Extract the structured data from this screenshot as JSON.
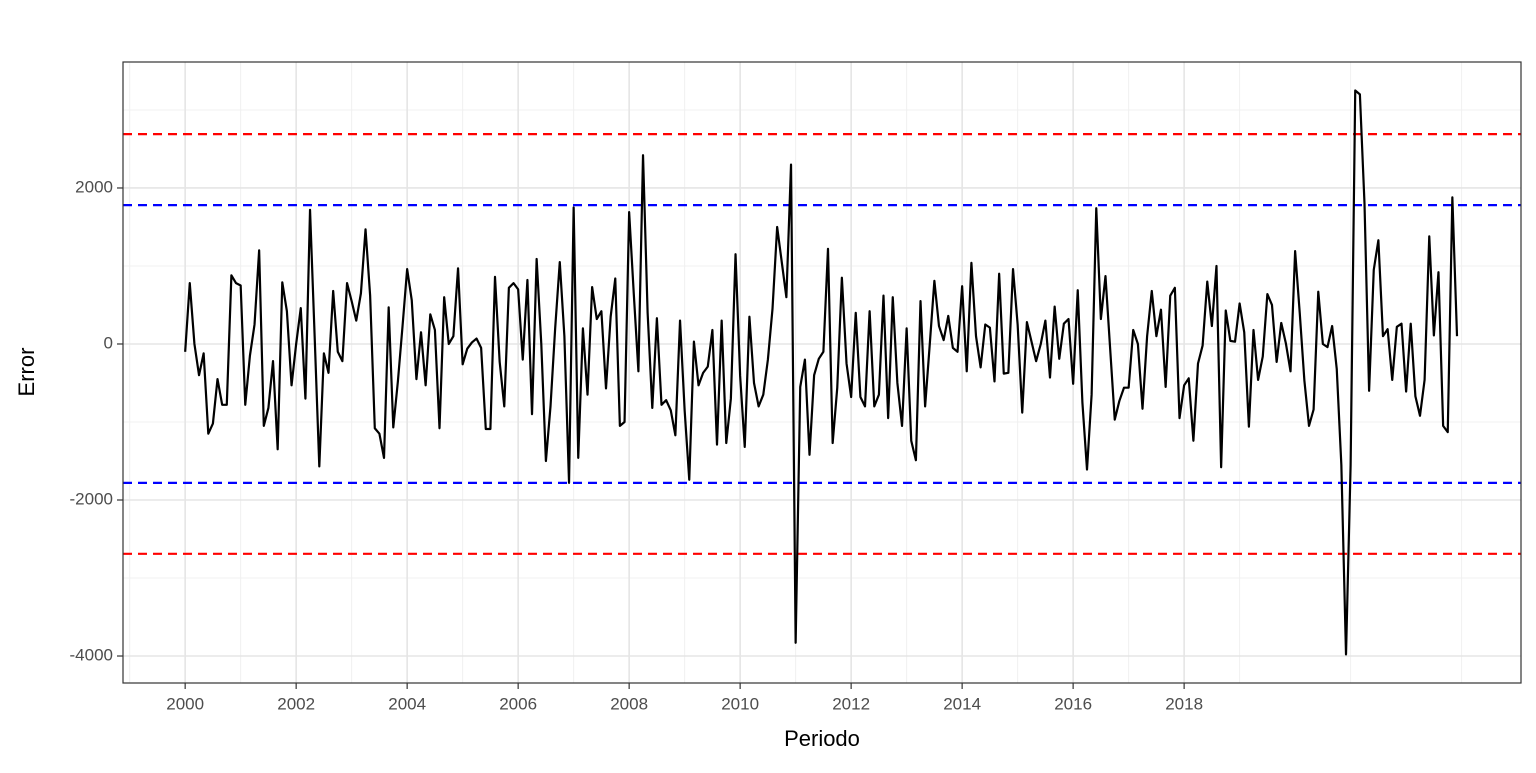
{
  "chart_data": {
    "type": "line",
    "xlabel": "Periodo",
    "ylabel": "Error",
    "x": [
      2000,
      2000.083,
      2000.167,
      2000.25,
      2000.333,
      2000.417,
      2000.5,
      2000.583,
      2000.667,
      2000.75,
      2000.833,
      2000.917,
      2001,
      2001.083,
      2001.167,
      2001.25,
      2001.333,
      2001.417,
      2001.5,
      2001.583,
      2001.667,
      2001.75,
      2001.833,
      2001.917,
      2002,
      2002.083,
      2002.167,
      2002.25,
      2002.333,
      2002.417,
      2002.5,
      2002.583,
      2002.667,
      2002.75,
      2002.833,
      2002.917,
      2003,
      2003.083,
      2003.167,
      2003.25,
      2003.333,
      2003.417,
      2003.5,
      2003.583,
      2003.667,
      2003.75,
      2003.833,
      2003.917,
      2004,
      2004.083,
      2004.167,
      2004.25,
      2004.333,
      2004.417,
      2004.5,
      2004.583,
      2004.667,
      2004.75,
      2004.833,
      2004.917,
      2005,
      2005.083,
      2005.167,
      2005.25,
      2005.333,
      2005.417,
      2005.5,
      2005.583,
      2005.667,
      2005.75,
      2005.833,
      2005.917,
      2006,
      2006.083,
      2006.167,
      2006.25,
      2006.333,
      2006.417,
      2006.5,
      2006.583,
      2006.667,
      2006.75,
      2006.833,
      2006.917,
      2007,
      2007.083,
      2007.167,
      2007.25,
      2007.333,
      2007.417,
      2007.5,
      2007.583,
      2007.667,
      2007.75,
      2007.833,
      2007.917,
      2008,
      2008.083,
      2008.167,
      2008.25,
      2008.333,
      2008.417,
      2008.5,
      2008.583,
      2008.667,
      2008.75,
      2008.833,
      2008.917,
      2009,
      2009.083,
      2009.167,
      2009.25,
      2009.333,
      2009.417,
      2009.5,
      2009.583,
      2009.667,
      2009.75,
      2009.833,
      2009.917,
      2010,
      2010.083,
      2010.167,
      2010.25,
      2010.333,
      2010.417,
      2010.5,
      2010.583,
      2010.667,
      2010.75,
      2010.833,
      2010.917,
      2011,
      2011.083,
      2011.167,
      2011.25,
      2011.333,
      2011.417,
      2011.5,
      2011.583,
      2011.667,
      2011.75,
      2011.833,
      2011.917,
      2012,
      2012.083,
      2012.167,
      2012.25,
      2012.333,
      2012.417,
      2012.5,
      2012.583,
      2012.667,
      2012.75,
      2012.833,
      2012.917,
      2013,
      2013.083,
      2013.167,
      2013.25,
      2013.333,
      2013.417,
      2013.5,
      2013.583,
      2013.667,
      2013.75,
      2013.833,
      2013.917,
      2014,
      2014.083,
      2014.167,
      2014.25,
      2014.333,
      2014.417,
      2014.5,
      2014.583,
      2014.667,
      2014.75,
      2014.833,
      2014.917,
      2015,
      2015.083,
      2015.167,
      2015.25,
      2015.333,
      2015.417,
      2015.5,
      2015.583,
      2015.667,
      2015.75,
      2015.833,
      2015.917,
      2016,
      2016.083,
      2016.167,
      2016.25,
      2016.333,
      2016.417,
      2016.5,
      2016.583,
      2016.667,
      2016.75,
      2016.833,
      2016.917,
      2017,
      2017.083,
      2017.167,
      2017.25,
      2017.333,
      2017.417,
      2017.5,
      2017.583,
      2017.667,
      2017.75,
      2017.833,
      2017.917,
      2018,
      2018.083,
      2018.167,
      2018.25,
      2018.333,
      2018.417,
      2018.5,
      2018.583,
      2018.667,
      2018.75,
      2018.833,
      2018.917,
      2019,
      2019.083,
      2019.167,
      2019.25,
      2019.333,
      2019.417,
      2019.5,
      2019.583,
      2019.667,
      2019.75,
      2019.833,
      2019.917,
      2020,
      2020.083,
      2020.167,
      2020.25,
      2020.333,
      2020.417,
      2020.5,
      2020.583,
      2020.667,
      2020.75,
      2020.833,
      2020.917,
      2021,
      2021.083,
      2021.167,
      2021.25,
      2021.333,
      2021.417,
      2021.5,
      2021.583,
      2021.667,
      2021.75,
      2021.833,
      2021.917,
      2022,
      2022.083,
      2022.167,
      2022.25,
      2022.333,
      2022.417,
      2022.5,
      2022.583,
      2022.667,
      2022.75,
      2022.833,
      2022.917
    ],
    "series": [
      {
        "color": "#000000",
        "values": [
          -100,
          780,
          0,
          -400,
          -120,
          -1150,
          -1020,
          -450,
          -780,
          -780,
          880,
          780,
          750,
          -780,
          -150,
          250,
          1200,
          -1050,
          -820,
          -220,
          -1350,
          790,
          420,
          -530,
          0,
          460,
          -700,
          1720,
          100,
          -1570,
          -120,
          -370,
          680,
          -100,
          -220,
          780,
          550,
          300,
          650,
          1470,
          620,
          -1080,
          -1150,
          -1460,
          470,
          -1070,
          -480,
          230,
          960,
          560,
          -450,
          150,
          -530,
          380,
          180,
          -1080,
          600,
          0,
          100,
          970,
          -260,
          -60,
          20,
          70,
          -50,
          -1090,
          -1090,
          860,
          -230,
          -800,
          720,
          780,
          700,
          -200,
          820,
          -900,
          1090,
          0,
          -1500,
          -800,
          200,
          1050,
          100,
          -1780,
          1750,
          -1460,
          200,
          -650,
          730,
          320,
          420,
          -570,
          350,
          840,
          -1050,
          -1000,
          1690,
          650,
          -350,
          2420,
          400,
          -820,
          330,
          -780,
          -720,
          -850,
          -1170,
          300,
          -850,
          -1740,
          30,
          -530,
          -370,
          -290,
          180,
          -1290,
          300,
          -1270,
          -700,
          1150,
          -410,
          -1320,
          350,
          -500,
          -800,
          -650,
          -200,
          450,
          1500,
          1050,
          600,
          2300,
          -3830,
          -550,
          -200,
          -1420,
          -400,
          -190,
          -100,
          1220,
          -1270,
          -560,
          850,
          -250,
          -680,
          400,
          -680,
          -800,
          420,
          -800,
          -650,
          620,
          -950,
          600,
          -500,
          -1050,
          200,
          -1240,
          -1490,
          550,
          -800,
          0,
          810,
          230,
          50,
          360,
          -50,
          -100,
          740,
          -350,
          1040,
          100,
          -300,
          250,
          210,
          -480,
          900,
          -380,
          -370,
          960,
          250,
          -880,
          280,
          30,
          -220,
          0,
          300,
          -430,
          480,
          -190,
          260,
          320,
          -510,
          690,
          -750,
          -1610,
          -650,
          1740,
          320,
          870,
          -60,
          -970,
          -730,
          -560,
          -560,
          180,
          0,
          -830,
          100,
          680,
          100,
          440,
          -550,
          620,
          720,
          -950,
          -530,
          -440,
          -1240,
          -250,
          -20,
          800,
          230,
          1000,
          -1580,
          430,
          40,
          30,
          520,
          150,
          -1060,
          180,
          -460,
          -160,
          640,
          500,
          -230,
          270,
          10,
          -350,
          1190,
          400,
          -470,
          -1050,
          -840,
          670,
          0,
          -40,
          230,
          -320,
          -1550,
          -3980,
          -1550,
          3250,
          3200,
          1800,
          -600,
          950,
          1330,
          100,
          190,
          -460,
          220,
          260,
          -610,
          260,
          -670,
          -920,
          -460,
          1380,
          110,
          920,
          -1050,
          -1130,
          1880,
          100
        ]
      }
    ],
    "hlines": [
      {
        "value": 2690,
        "color": "#ff0000"
      },
      {
        "value": 1780,
        "color": "#0000ff"
      },
      {
        "value": -1780,
        "color": "#0000ff"
      },
      {
        "value": -2690,
        "color": "#ff0000"
      }
    ],
    "xlim": [
      1998.88,
      2024.07
    ],
    "ylim": [
      -4346,
      3615
    ],
    "xticks": [
      2000,
      2002,
      2004,
      2006,
      2008,
      2010,
      2012,
      2014,
      2016,
      2018
    ],
    "yticks": [
      -4000,
      -2000,
      0,
      2000
    ],
    "grid": true
  }
}
